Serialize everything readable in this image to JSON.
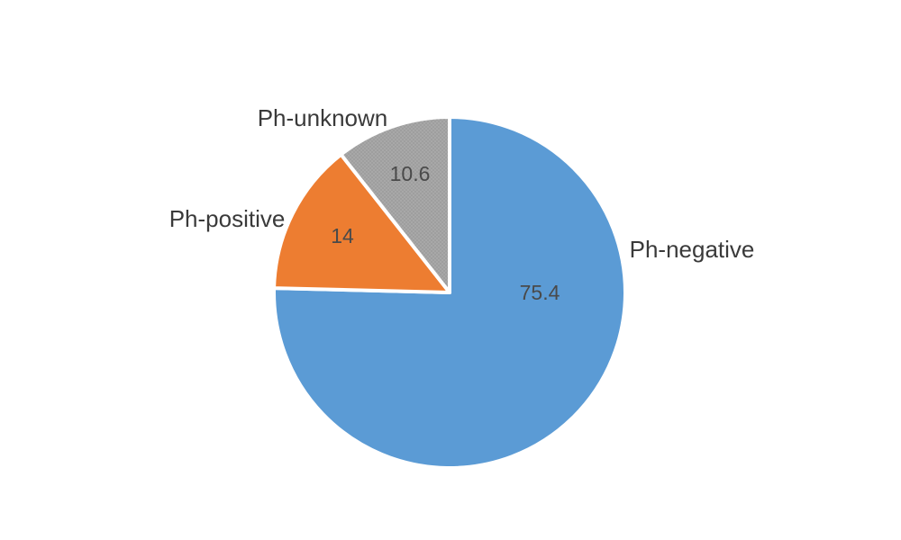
{
  "chart_data": {
    "type": "pie",
    "title": "",
    "legend": "none",
    "start_angle_deg": 0,
    "direction": "clockwise",
    "total": 100,
    "slices": [
      {
        "label": "Ph-negative",
        "value": 75.4,
        "value_text": "75.4",
        "color": "#5B9BD5",
        "pattern": false
      },
      {
        "label": "Ph-positive",
        "value": 14,
        "value_text": "14",
        "color": "#ED7D31",
        "pattern": false
      },
      {
        "label": "Ph-unknown",
        "value": 10.6,
        "value_text": "10.6",
        "color": "#A8A8A8",
        "pattern": true,
        "pattern_dot_color": "#8A8A8A"
      }
    ],
    "layout_hints": {
      "center": [
        499,
        325
      ],
      "radius": 195,
      "slice_border_color": "#FFFFFF",
      "slice_border_width": 4,
      "category_labels": [
        {
          "pos": [
            768,
            277
          ],
          "anchor": "middle"
        },
        {
          "pos": [
            252,
            243
          ],
          "anchor": "middle"
        },
        {
          "pos": [
            358,
            131
          ],
          "anchor": "middle"
        }
      ],
      "value_labels": [
        {
          "pos": [
            599,
            325
          ]
        },
        {
          "pos": [
            380,
            262
          ]
        },
        {
          "pos": [
            455,
            193
          ]
        }
      ]
    }
  }
}
